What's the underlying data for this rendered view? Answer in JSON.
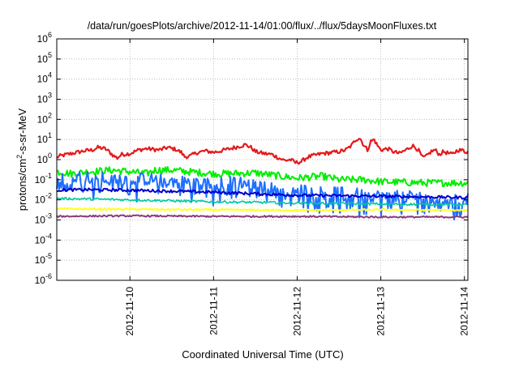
{
  "chart_data": {
    "type": "line",
    "title": "/data/run/goesPlots/archive/2012-11-14/01:00/flux/../flux/5daysMoonFluxes.txt",
    "xlabel": "Coordinated Universal Time (UTC)",
    "ylabel": "protons/cm2-s-sr-MeV",
    "ylabel_parts": {
      "base": "protons/cm",
      "sup": "2",
      "rest": "-s-sr-MeV"
    },
    "y_scale": "log",
    "ylim_exp": [
      -6,
      6
    ],
    "y_ticks": [
      {
        "exp": -6,
        "label": "10",
        "sup": "-6"
      },
      {
        "exp": -5,
        "label": "10",
        "sup": "-5"
      },
      {
        "exp": -4,
        "label": "10",
        "sup": "-4"
      },
      {
        "exp": -3,
        "label": "10",
        "sup": "-3"
      },
      {
        "exp": -2,
        "label": "10",
        "sup": "-2"
      },
      {
        "exp": -1,
        "label": "10",
        "sup": "-1"
      },
      {
        "exp": 0,
        "label": "10",
        "sup": "0"
      },
      {
        "exp": 1,
        "label": "10",
        "sup": "1"
      },
      {
        "exp": 2,
        "label": "10",
        "sup": "2"
      },
      {
        "exp": 3,
        "label": "10",
        "sup": "3"
      },
      {
        "exp": 4,
        "label": "10",
        "sup": "4"
      },
      {
        "exp": 5,
        "label": "10",
        "sup": "5"
      },
      {
        "exp": 6,
        "label": "10",
        "sup": "6"
      }
    ],
    "xlim": [
      "2012-11-09T03:00",
      "2012-11-14T01:00"
    ],
    "x_ticks": [
      "2012-11-10",
      "2012-11-11",
      "2012-11-12",
      "2012-11-13",
      "2012-11-14"
    ],
    "grid": true,
    "series": [
      {
        "color": "#e41a1c",
        "width": 2.2,
        "noise": 0.1,
        "points": [
          [
            0,
            0.85
          ],
          [
            0.05,
            0.95
          ],
          [
            0.1,
            1.0
          ],
          [
            0.14,
            1.4
          ],
          [
            0.22,
            1.7
          ],
          [
            0.3,
            2.0
          ],
          [
            0.45,
            2.7
          ],
          [
            0.55,
            3.0
          ],
          [
            0.62,
            4.0
          ],
          [
            0.7,
            3.5
          ],
          [
            0.75,
            2.5
          ],
          [
            0.8,
            1.6
          ],
          [
            0.85,
            1.2
          ],
          [
            0.9,
            1.8
          ],
          [
            1.0,
            2.0
          ],
          [
            1.1,
            3.0
          ],
          [
            1.2,
            3.5
          ],
          [
            1.35,
            3.0
          ],
          [
            1.45,
            4.0
          ],
          [
            1.55,
            3.2
          ],
          [
            1.62,
            2.2
          ],
          [
            1.65,
            1.4
          ],
          [
            1.72,
            1.5
          ],
          [
            1.8,
            2.2
          ],
          [
            1.9,
            2.7
          ],
          [
            2.0,
            2.3
          ],
          [
            2.1,
            2.8
          ],
          [
            2.2,
            3.5
          ],
          [
            2.3,
            4.5
          ],
          [
            2.38,
            5.5
          ],
          [
            2.45,
            4.0
          ],
          [
            2.5,
            2.5
          ],
          [
            2.6,
            2.0
          ],
          [
            2.7,
            1.8
          ],
          [
            2.78,
            1.2
          ],
          [
            2.85,
            0.9
          ],
          [
            2.92,
            1.0
          ],
          [
            2.98,
            0.7
          ],
          [
            3.05,
            0.8
          ],
          [
            3.12,
            1.3
          ],
          [
            3.2,
            1.6
          ],
          [
            3.3,
            2.0
          ],
          [
            3.4,
            2.2
          ],
          [
            3.5,
            2.5
          ],
          [
            3.58,
            3.0
          ],
          [
            3.65,
            5.0
          ],
          [
            3.7,
            10
          ],
          [
            3.75,
            12
          ],
          [
            3.8,
            5
          ],
          [
            3.84,
            3
          ],
          [
            3.88,
            8
          ],
          [
            3.92,
            10
          ],
          [
            3.96,
            5
          ],
          [
            4.0,
            3
          ],
          [
            4.08,
            3.5
          ],
          [
            4.15,
            2.5
          ],
          [
            4.22,
            2
          ],
          [
            4.3,
            3
          ],
          [
            4.38,
            5
          ],
          [
            4.45,
            3
          ],
          [
            4.5,
            1.2
          ],
          [
            4.55,
            1.5
          ],
          [
            4.6,
            2.5
          ],
          [
            4.65,
            3.0
          ],
          [
            4.7,
            1.8
          ],
          [
            4.75,
            2.5
          ],
          [
            4.85,
            1.8
          ],
          [
            4.92,
            3.0
          ],
          [
            5.0,
            2.8
          ],
          [
            5.0,
            2.5
          ]
        ]
      },
      {
        "color": "#00ee00",
        "width": 2.0,
        "noise": 0.18,
        "points": [
          [
            0,
            0.3
          ],
          [
            0.3,
            0.2
          ],
          [
            0.5,
            0.25
          ],
          [
            0.8,
            0.3
          ],
          [
            1.0,
            0.25
          ],
          [
            1.2,
            0.2
          ],
          [
            1.3,
            0.3
          ],
          [
            1.5,
            0.3
          ],
          [
            1.7,
            0.25
          ],
          [
            2.0,
            0.2
          ],
          [
            2.2,
            0.2
          ],
          [
            2.5,
            0.22
          ],
          [
            2.8,
            0.15
          ],
          [
            3.0,
            0.12
          ],
          [
            3.3,
            0.15
          ],
          [
            3.5,
            0.1
          ],
          [
            3.8,
            0.1
          ],
          [
            4.0,
            0.08
          ],
          [
            4.5,
            0.07
          ],
          [
            5.0,
            0.07
          ]
        ]
      },
      {
        "color": "#1e6fff",
        "width": 2.0,
        "noise": 0.32,
        "spike_down": 0.35,
        "points": [
          [
            0,
            0.08
          ],
          [
            0.3,
            0.12
          ],
          [
            0.5,
            0.15
          ],
          [
            0.8,
            0.1
          ],
          [
            1.0,
            0.12
          ],
          [
            1.3,
            0.1
          ],
          [
            1.6,
            0.08
          ],
          [
            2.0,
            0.06
          ],
          [
            2.3,
            0.08
          ],
          [
            2.6,
            0.04
          ],
          [
            3.0,
            0.03
          ],
          [
            3.3,
            0.025
          ],
          [
            3.6,
            0.02
          ],
          [
            4.0,
            0.015
          ],
          [
            4.5,
            0.015
          ],
          [
            5.0,
            0.012
          ]
        ]
      },
      {
        "color": "#0000cc",
        "width": 2.0,
        "noise": 0.07,
        "points": [
          [
            0,
            0.03
          ],
          [
            0.5,
            0.032
          ],
          [
            1.0,
            0.03
          ],
          [
            1.5,
            0.027
          ],
          [
            2.0,
            0.024
          ],
          [
            2.5,
            0.02
          ],
          [
            2.8,
            0.018
          ],
          [
            3.0,
            0.017
          ],
          [
            3.5,
            0.016
          ],
          [
            4.0,
            0.015
          ],
          [
            4.5,
            0.014
          ],
          [
            5.0,
            0.013
          ]
        ]
      },
      {
        "color": "#00c8a0",
        "width": 1.6,
        "noise": 0.06,
        "points": [
          [
            0,
            0.012
          ],
          [
            0.5,
            0.011
          ],
          [
            1.0,
            0.01
          ],
          [
            1.5,
            0.009
          ],
          [
            2.0,
            0.008
          ],
          [
            2.5,
            0.0075
          ],
          [
            3.0,
            0.007
          ],
          [
            3.5,
            0.0065
          ],
          [
            4.0,
            0.0062
          ],
          [
            4.5,
            0.006
          ],
          [
            5.0,
            0.0058
          ]
        ]
      },
      {
        "color": "#ffff33",
        "width": 2.2,
        "noise": 0.04,
        "points": [
          [
            0,
            0.0036
          ],
          [
            1.0,
            0.0034
          ],
          [
            2.0,
            0.0032
          ],
          [
            3.0,
            0.003
          ],
          [
            4.0,
            0.0032
          ],
          [
            5.0,
            0.003
          ]
        ]
      },
      {
        "color": "#8b3a7a",
        "width": 2.0,
        "noise": 0.04,
        "points": [
          [
            0,
            0.0015
          ],
          [
            1.0,
            0.0016
          ],
          [
            2.0,
            0.0015
          ],
          [
            3.0,
            0.0015
          ],
          [
            4.0,
            0.0014
          ],
          [
            5.0,
            0.0014
          ]
        ]
      }
    ]
  }
}
